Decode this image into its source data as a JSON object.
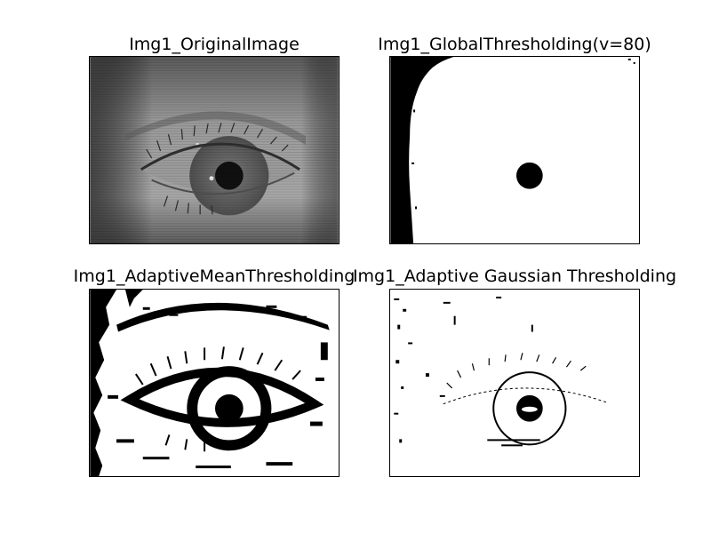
{
  "panels": [
    {
      "title": "Img1_OriginalImage"
    },
    {
      "title": "Img1_GlobalThresholding(v=80)"
    },
    {
      "title": "Img1_AdaptiveMeanThresholding"
    },
    {
      "title": "Img1_Adaptive Gaussian Thresholding"
    }
  ],
  "colors": {
    "background": "#ffffff",
    "foreground": "#000000",
    "original_skin": "#8c8c8c",
    "original_iris": "#6a6a6a"
  }
}
